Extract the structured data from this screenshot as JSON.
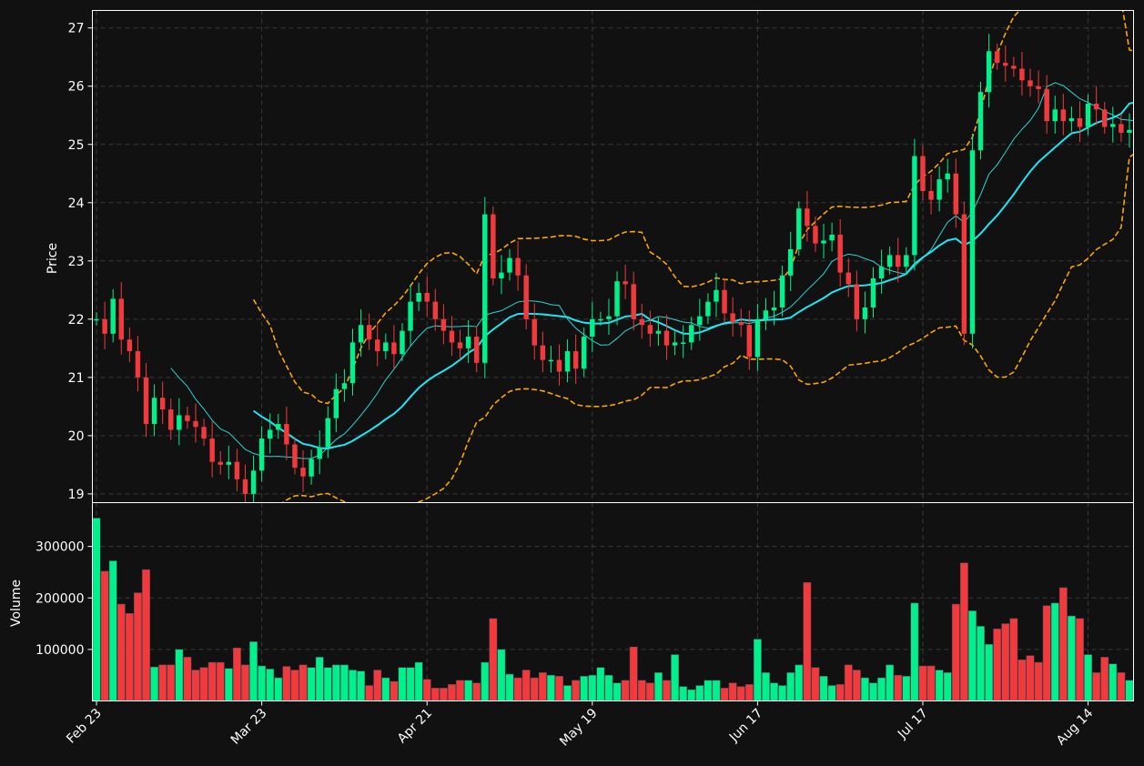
{
  "chart_data": {
    "type": "candlestick",
    "theme": {
      "background": "#111111",
      "up_color": "#00f08c",
      "down_color": "#f23a3c",
      "bands_color": "#ffa500",
      "sma_fast_color": "#2ad4d4",
      "sma_slow_color": "#1ee6f5",
      "grid_color": "#3a3a3a"
    },
    "price_panel": {
      "ylabel": "Price",
      "ylim": [
        18.85,
        27.3
      ],
      "yticks": [
        "19",
        "20",
        "21",
        "22",
        "23",
        "24",
        "25",
        "26",
        "27"
      ]
    },
    "volume_panel": {
      "ylabel": "Volume",
      "ylim": [
        0,
        385000
      ],
      "yticks": [
        "100000",
        "200000",
        "300000"
      ]
    },
    "x_ticks": [
      {
        "label": "Feb 23",
        "index": 0
      },
      {
        "label": "Mar 23",
        "index": 20
      },
      {
        "label": "Apr 21",
        "index": 40
      },
      {
        "label": "May 19",
        "index": 60
      },
      {
        "label": "Jun 17",
        "index": 80
      },
      {
        "label": "Jul 17",
        "index": 100
      },
      {
        "label": "Aug 14",
        "index": 120
      }
    ],
    "x_range": [
      -0.5,
      125.5
    ],
    "closes": [
      22.0,
      21.75,
      22.35,
      21.65,
      21.45,
      21.0,
      20.2,
      20.65,
      20.45,
      20.1,
      20.35,
      20.25,
      20.15,
      19.95,
      19.55,
      19.5,
      19.55,
      19.25,
      19.0,
      19.4,
      19.95,
      20.1,
      20.2,
      19.85,
      19.45,
      19.3,
      19.6,
      19.8,
      20.3,
      20.8,
      20.9,
      21.6,
      21.9,
      21.65,
      21.45,
      21.6,
      21.4,
      21.8,
      22.3,
      22.45,
      22.3,
      22.0,
      21.8,
      21.6,
      21.5,
      21.7,
      21.25,
      23.8,
      22.7,
      22.8,
      23.05,
      22.75,
      22.0,
      21.55,
      21.3,
      21.3,
      21.1,
      21.45,
      21.15,
      21.7,
      22.0,
      22.0,
      22.05,
      22.65,
      22.6,
      22.0,
      21.9,
      21.75,
      21.8,
      21.55,
      21.6,
      21.6,
      21.9,
      22.05,
      22.3,
      22.5,
      22.1,
      21.95,
      21.9,
      21.35,
      22.0,
      22.15,
      22.2,
      22.75,
      23.2,
      23.9,
      23.6,
      23.3,
      23.35,
      23.45,
      22.8,
      22.6,
      22.0,
      22.2,
      22.7,
      22.9,
      23.1,
      22.9,
      23.1,
      24.8,
      24.2,
      24.05,
      24.4,
      24.5,
      23.8,
      21.75,
      24.9,
      25.9,
      26.6,
      26.4,
      26.35,
      26.3,
      26.1,
      26.0,
      25.95,
      25.4,
      25.6,
      25.4,
      25.45,
      25.3,
      25.7,
      25.6,
      25.3,
      25.35,
      25.2,
      25.25,
      25.45
    ],
    "volumes": [
      355000,
      252000,
      272000,
      188000,
      170000,
      210000,
      255000,
      66000,
      70000,
      70000,
      100000,
      85000,
      60000,
      65000,
      75000,
      75000,
      63000,
      103000,
      70000,
      115000,
      68000,
      62000,
      45000,
      67000,
      60000,
      70000,
      65000,
      85000,
      65000,
      70000,
      70000,
      60000,
      58000,
      30000,
      60000,
      45000,
      38000,
      65000,
      65000,
      75000,
      42000,
      25000,
      25000,
      32000,
      40000,
      40000,
      35000,
      75000,
      160000,
      100000,
      52000,
      45000,
      60000,
      45000,
      55000,
      50000,
      48000,
      30000,
      40000,
      48000,
      50000,
      65000,
      50000,
      35000,
      40000,
      105000,
      40000,
      35000,
      55000,
      40000,
      90000,
      28000,
      22000,
      30000,
      40000,
      40000,
      25000,
      35000,
      28000,
      32000,
      120000,
      55000,
      35000,
      30000,
      55000,
      70000,
      230000,
      65000,
      48000,
      30000,
      32000,
      70000,
      60000,
      45000,
      35000,
      45000,
      70000,
      50000,
      48000,
      190000,
      68000,
      68000,
      60000,
      55000,
      188000,
      268000,
      175000,
      145000,
      110000,
      140000,
      150000,
      160000,
      80000,
      88000,
      75000,
      185000,
      190000,
      220000,
      165000,
      160000,
      90000,
      55000,
      85000,
      72000,
      55000,
      40000
    ]
  }
}
